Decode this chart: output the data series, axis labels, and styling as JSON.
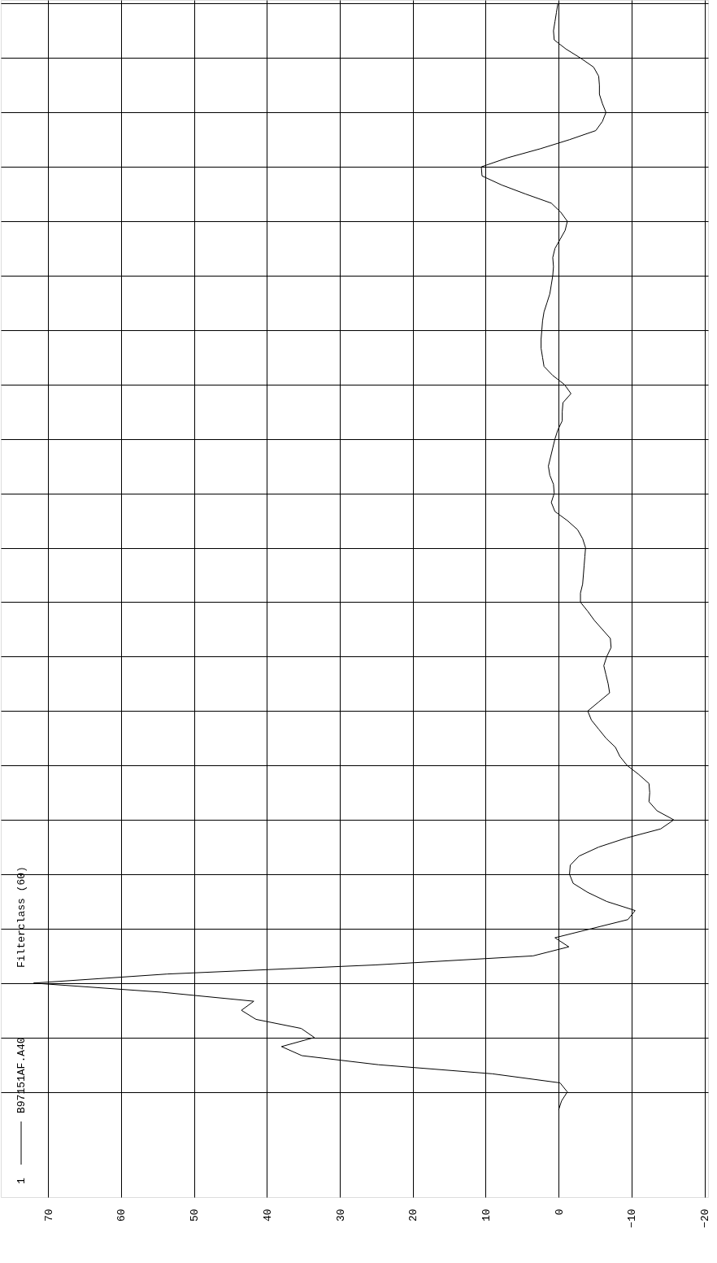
{
  "chart_data": {
    "type": "line",
    "categories": [
      null,
      null,
      null,
      null,
      null,
      null,
      null,
      null,
      null,
      null,
      null,
      null,
      null,
      null,
      null,
      null,
      null,
      null,
      null,
      null,
      null,
      null,
      null,
      null,
      null,
      null,
      null,
      null,
      null,
      null,
      null,
      null,
      null,
      null,
      null,
      null,
      null,
      null,
      null,
      null,
      null,
      null,
      null,
      null,
      null,
      null,
      null,
      null,
      null,
      null,
      null,
      null,
      null,
      null,
      null,
      null,
      null,
      null,
      null,
      null,
      null,
      null,
      null,
      null,
      null,
      null,
      null,
      null,
      null,
      null,
      null,
      null,
      null,
      null,
      null,
      null,
      null,
      null,
      null,
      null,
      null,
      null,
      null,
      null,
      null,
      null,
      null,
      null,
      null,
      null,
      null,
      null,
      null,
      null,
      null,
      null,
      null,
      null,
      null,
      null,
      null,
      null,
      null,
      null,
      null,
      null,
      null,
      null,
      null,
      null,
      null,
      null,
      null,
      null,
      null,
      null,
      null,
      null,
      null,
      null,
      null,
      null,
      null
    ],
    "series": [
      {
        "name": "B97151AF.A40",
        "color": "#000000",
        "values": [
          0.1,
          0.3,
          0.5,
          0.7,
          0.6,
          -1,
          -3,
          -4.8,
          -5.5,
          -5.6,
          -5.6,
          -6,
          -6.5,
          -6,
          -5.1,
          -1.5,
          2.5,
          7,
          10.6,
          10.5,
          7.8,
          4.5,
          1,
          -0.3,
          -1.2,
          -0.9,
          -0.2,
          0.5,
          0.8,
          0.7,
          0.8,
          1,
          1.2,
          1.6,
          2,
          2.2,
          2.3,
          2.4,
          2.4,
          2.2,
          2,
          0.8,
          -0.8,
          -1.7,
          -0.6,
          -0.5,
          -0.5,
          0.1,
          0.5,
          0.8,
          1.1,
          1.4,
          1.2,
          0.7,
          0.6,
          1,
          0.5,
          -1.2,
          -2.6,
          -3.3,
          -3.7,
          -3.6,
          -3.5,
          -3.4,
          -3.3,
          -3,
          -3,
          -4,
          -4.9,
          -6,
          -7.1,
          -7.2,
          -6.6,
          -6.2,
          -6.5,
          -6.8,
          -7,
          -5.5,
          -4,
          -4.5,
          -5.5,
          -6.5,
          -7.8,
          -8.4,
          -9.4,
          -11,
          -12.4,
          -12.5,
          -12.4,
          -13.5,
          -15.8,
          -14,
          -9.3,
          -5.5,
          -2.8,
          -1.6,
          -1.5,
          -2,
          -4,
          -6.6,
          -10.5,
          -9.5,
          -4.5,
          0.5,
          -1.4,
          3.5,
          25.2,
          53.7,
          72,
          54.5,
          41.8,
          43.5,
          41.5,
          35.3,
          33.5,
          38,
          35.2,
          24.7,
          9.1,
          -0.2,
          -1.2,
          -0.4,
          0
        ]
      }
    ],
    "legend_title": "1",
    "annotations": [
      "Filterclass (60)"
    ],
    "orientation": "horizontal",
    "xlim": [
      76.5,
      -20.5
    ],
    "xticks": [
      -20,
      -10,
      0,
      10,
      20,
      30,
      40,
      50,
      60,
      70
    ],
    "grid": true,
    "legend": "bottom left",
    "line_style": "solid"
  }
}
